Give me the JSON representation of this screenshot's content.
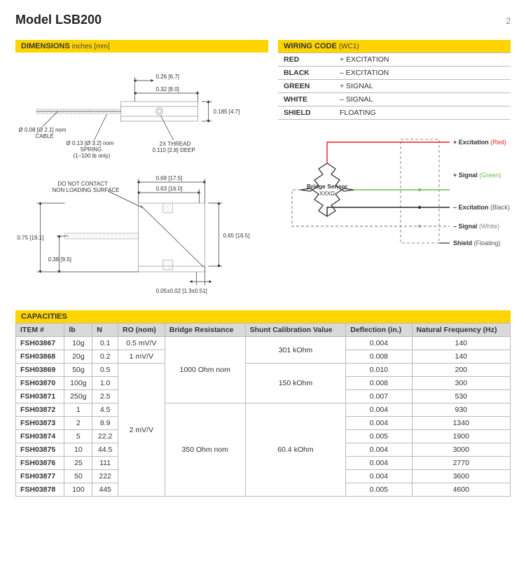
{
  "header": {
    "title": "Model LSB200",
    "page": "2"
  },
  "dimensions": {
    "bar_label": "DIMENSIONS",
    "bar_sub": "inches [mm]",
    "labels": {
      "w026": "0.26 [6.7]",
      "w032": "0.32 [8.0]",
      "h0185": "0.185 [4.7]",
      "cable": "Ø 0.08 [Ø 2.1] nom\nCABLE",
      "spring": "Ø 0.13 [Ø 3.2] nom\nSPRING\n(1–100 lb only)",
      "thread": "2X THREAD\n0.110 [2.8] DEEP",
      "nocontact": "DO NOT CONTACT\nNON LOADING SURFACE",
      "w069": "0.69 [17.5]",
      "w063": "0.63 [16.0]",
      "h075": "0.75 [19.1]",
      "h038": "0.38 [9.5]",
      "h065": "0.65 [16.5]",
      "base": "0.05±0.02 [1.3±0.51]"
    }
  },
  "wiring": {
    "bar_label": "WIRING CODE",
    "bar_sub": "(WC1)",
    "rows": [
      {
        "color": "RED",
        "fn": "+ EXCITATION"
      },
      {
        "color": "BLACK",
        "fn": "– EXCITATION"
      },
      {
        "color": "GREEN",
        "fn": "+ SIGNAL"
      },
      {
        "color": "WHITE",
        "fn": "– SIGNAL"
      },
      {
        "color": "SHIELD",
        "fn": "FLOATING"
      }
    ],
    "diagram": {
      "bridge": "Bridge Sensor",
      "ohms": "XXXΩ",
      "plus_exc": "+ Excitation",
      "plus_exc_c": "(Red)",
      "plus_sig": "+ Signal",
      "plus_sig_c": "(Green)",
      "minus_exc": "– Excitation",
      "minus_exc_c": "(Black)",
      "minus_sig": "– Signal",
      "minus_sig_c": "(White)",
      "shield": "Shield",
      "shield_c": "(Floating)",
      "colors": {
        "red": "#ed1c24",
        "green": "#6bc048",
        "black": "#262626",
        "grey": "#9e9e9e",
        "dark": "#4a4a4a"
      }
    }
  },
  "capacities": {
    "bar_label": "CAPACITIES",
    "headers": [
      "ITEM #",
      "lb",
      "N",
      "RO (nom)",
      "Bridge Resistance",
      "Shunt Calibration Value",
      "Deflection (in.)",
      "Natural Frequency (Hz)"
    ],
    "rows": [
      {
        "item": "FSH03867",
        "lb": "10g",
        "n": "0.1",
        "ro": "0.5 mV/V",
        "br": "",
        "scv": "",
        "defl": "0.004",
        "nf": "140"
      },
      {
        "item": "FSH03868",
        "lb": "20g",
        "n": "0.2",
        "ro": "1 mV/V",
        "br": "",
        "scv": "",
        "defl": "0.008",
        "nf": "140"
      },
      {
        "item": "FSH03869",
        "lb": "50g",
        "n": "0.5",
        "ro": "",
        "br": "1000 Ohm nom",
        "scv": "",
        "defl": "0.010",
        "nf": "200"
      },
      {
        "item": "FSH03870",
        "lb": "100g",
        "n": "1.0",
        "ro": "",
        "br": "",
        "scv": "150 kOhm",
        "defl": "0.008",
        "nf": "300"
      },
      {
        "item": "FSH03871",
        "lb": "250g",
        "n": "2.5",
        "ro": "",
        "br": "",
        "scv": "",
        "defl": "0.007",
        "nf": "530"
      },
      {
        "item": "FSH03872",
        "lb": "1",
        "n": "4.5",
        "ro": "",
        "br": "",
        "scv": "",
        "defl": "0.004",
        "nf": "930"
      },
      {
        "item": "FSH03873",
        "lb": "2",
        "n": "8.9",
        "ro": "",
        "br": "",
        "scv": "",
        "defl": "0.004",
        "nf": "1340"
      },
      {
        "item": "FSH03874",
        "lb": "5",
        "n": "22.2",
        "ro": "2 mV/V",
        "br": "",
        "scv": "",
        "defl": "0.005",
        "nf": "1900"
      },
      {
        "item": "FSH03875",
        "lb": "10",
        "n": "44.5",
        "ro": "",
        "br": "350 Ohm nom",
        "scv": "60.4 kOhm",
        "defl": "0.004",
        "nf": "3000"
      },
      {
        "item": "FSH03876",
        "lb": "25",
        "n": "111",
        "ro": "",
        "br": "",
        "scv": "",
        "defl": "0.004",
        "nf": "2770"
      },
      {
        "item": "FSH03877",
        "lb": "50",
        "n": "222",
        "ro": "",
        "br": "",
        "scv": "",
        "defl": "0.004",
        "nf": "3600"
      },
      {
        "item": "FSH03878",
        "lb": "100",
        "n": "445",
        "ro": "",
        "br": "",
        "scv": "",
        "defl": "0.005",
        "nf": "4600"
      }
    ],
    "merges": {
      "ro_05": 1,
      "ro_1": 1,
      "ro_2": 10,
      "br_1000": 5,
      "br_350": 7,
      "scv_301": 2,
      "scv_150": 3,
      "scv_604": 7,
      "scv_301_txt": "301 kOhm"
    }
  }
}
